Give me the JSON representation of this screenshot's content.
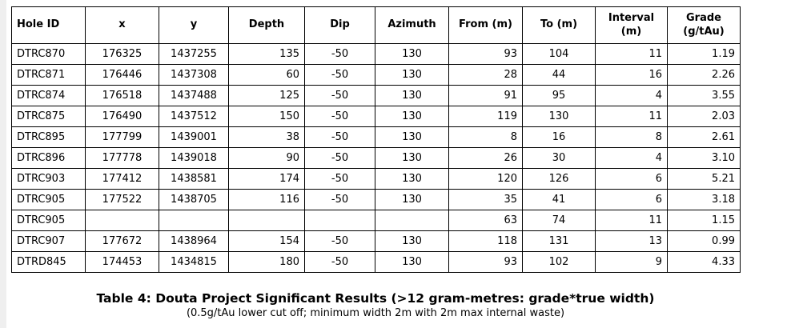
{
  "page": {
    "background": "#ffffff",
    "left_strip_color": "#efefef",
    "border_color": "#000000",
    "text_color": "#000000"
  },
  "table": {
    "headers": [
      {
        "label": "Hole ID",
        "header_align": "left",
        "cell_align": "left"
      },
      {
        "label": "x",
        "header_align": "center",
        "cell_align": "center"
      },
      {
        "label": "y",
        "header_align": "center",
        "cell_align": "center"
      },
      {
        "label": "Depth",
        "header_align": "center",
        "cell_align": "right"
      },
      {
        "label": "Dip",
        "header_align": "center",
        "cell_align": "center"
      },
      {
        "label": "Azimuth",
        "header_align": "center",
        "cell_align": "center"
      },
      {
        "label": "From (m)",
        "header_align": "center",
        "cell_align": "right"
      },
      {
        "label": "To (m)",
        "header_align": "center",
        "cell_align": "center"
      },
      {
        "label": "Interval\n(m)",
        "header_align": "center",
        "cell_align": "right"
      },
      {
        "label": "Grade\n(g/tAu)",
        "header_align": "center",
        "cell_align": "right"
      }
    ],
    "rows": [
      [
        "DTRC870",
        "176325",
        "1437255",
        "135",
        "-50",
        "130",
        "93",
        "104",
        "11",
        "1.19"
      ],
      [
        "DTRC871",
        "176446",
        "1437308",
        "60",
        "-50",
        "130",
        "28",
        "44",
        "16",
        "2.26"
      ],
      [
        "DTRC874",
        "176518",
        "1437488",
        "125",
        "-50",
        "130",
        "91",
        "95",
        "4",
        "3.55"
      ],
      [
        "DTRC875",
        "176490",
        "1437512",
        "150",
        "-50",
        "130",
        "119",
        "130",
        "11",
        "2.03"
      ],
      [
        "DTRC895",
        "177799",
        "1439001",
        "38",
        "-50",
        "130",
        "8",
        "16",
        "8",
        "2.61"
      ],
      [
        "DTRC896",
        "177778",
        "1439018",
        "90",
        "-50",
        "130",
        "26",
        "30",
        "4",
        "3.10"
      ],
      [
        "DTRC903",
        "177412",
        "1438581",
        "174",
        "-50",
        "130",
        "120",
        "126",
        "6",
        "5.21"
      ],
      [
        "DTRC905",
        "177522",
        "1438705",
        "116",
        "-50",
        "130",
        "35",
        "41",
        "6",
        "3.18"
      ],
      [
        "DTRC905",
        "",
        "",
        "",
        "",
        "",
        "63",
        "74",
        "11",
        "1.15"
      ],
      [
        "DTRC907",
        "177672",
        "1438964",
        "154",
        "-50",
        "130",
        "118",
        "131",
        "13",
        "0.99"
      ],
      [
        "DTRD845",
        "174453",
        "1434815",
        "180",
        "-50",
        "130",
        "93",
        "102",
        "9",
        "4.33"
      ]
    ]
  },
  "caption": {
    "title": "Table 4: Douta Project Significant Results (>12 gram-metres: grade*true width)",
    "subtitle": "(0.5g/tAu lower cut off; minimum width 2m with 2m max internal waste)"
  }
}
